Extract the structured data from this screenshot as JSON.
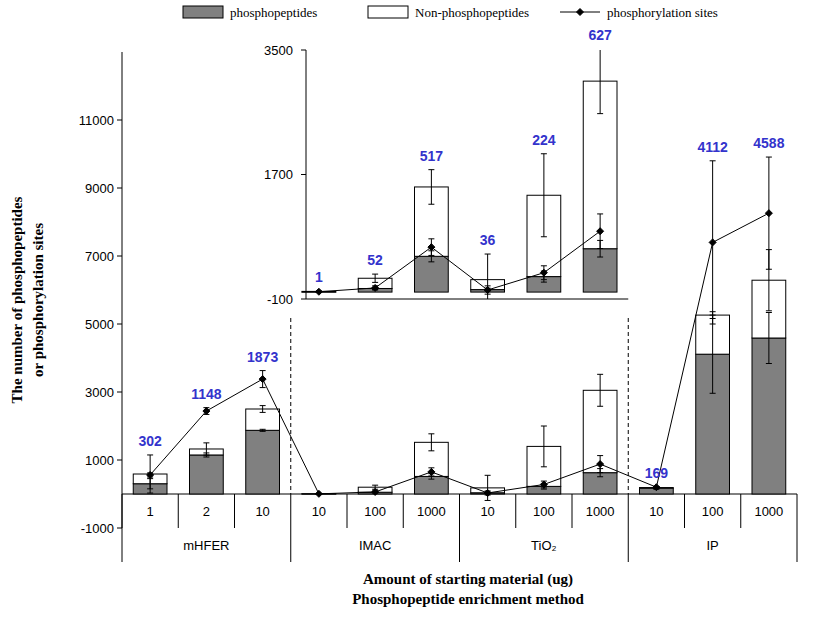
{
  "chart_data": [
    {
      "type": "bar",
      "stacked": true,
      "data_labels": true,
      "legend": "top",
      "y_label": [
        "The number of phosphopeptides",
        "or phosphorylation sites"
      ],
      "x_label": [
        "Amount of starting material (ug)",
        "Phosphopeptide enrichment method"
      ],
      "categories": [
        "1",
        "2",
        "10",
        "10",
        "100",
        "1000",
        "10",
        "100",
        "1000",
        "10",
        "100",
        "1000"
      ],
      "groups": [
        {
          "name": "mHFER",
          "size": 3
        },
        {
          "name": "IMAC",
          "size": 3
        },
        {
          "name": "TiO₂",
          "size": 3
        },
        {
          "name": "IP",
          "size": 3
        }
      ],
      "ylim": [
        -1000,
        13000
      ],
      "yticks": [
        -1000,
        1000,
        3000,
        5000,
        7000,
        9000,
        11000
      ],
      "series": [
        {
          "name": "phosphopeptides",
          "color": "#808080",
          "values": [
            302,
            1148,
            1873,
            1,
            52,
            517,
            36,
            224,
            627,
            169,
            4112,
            4588
          ],
          "errors": [
            150,
            60,
            30,
            1,
            15,
            80,
            20,
            80,
            120,
            30,
            1150,
            750
          ],
          "value_labels": [
            "302",
            "1148",
            "1873",
            null,
            null,
            null,
            null,
            null,
            null,
            "169",
            "4112",
            "4588"
          ]
        },
        {
          "name": "Non-phosphopeptides",
          "color": "#ffffff",
          "values": [
            286,
            176,
            627,
            9,
            148,
            1003,
            144,
            1176,
            2423,
            21,
            1150,
            1700
          ],
          "errors": [
            560,
            180,
            100,
            5,
            60,
            250,
            370,
            600,
            470,
            30,
            100,
            900
          ]
        },
        {
          "name": "phosphorylation sites",
          "type": "line",
          "color": "#000000",
          "marker": "diamond",
          "line_style": "solid",
          "values": [
            560,
            2440,
            3380,
            5,
            60,
            650,
            30,
            280,
            880,
            200,
            7400,
            8260
          ],
          "errors": [
            60,
            100,
            250,
            3,
            30,
            120,
            60,
            100,
            250,
            20,
            2400,
            1650
          ]
        }
      ]
    },
    {
      "type": "bar",
      "stacked": true,
      "data_labels": true,
      "tick_labels": "y",
      "categories": [
        null,
        null,
        null,
        null,
        null,
        null
      ],
      "ylim": [
        -100,
        3500
      ],
      "yticks": [
        -100,
        1700,
        3500
      ],
      "series": [
        {
          "color": "#808080",
          "values": [
            1,
            52,
            517,
            36,
            224,
            627
          ],
          "errors": [
            1,
            15,
            80,
            20,
            80,
            120
          ]
        },
        {
          "color": "#ffffff",
          "values": [
            9,
            148,
            1003,
            144,
            1176,
            2423
          ],
          "errors": [
            5,
            60,
            250,
            370,
            600,
            470
          ]
        },
        {
          "type": "line",
          "color": "#000000",
          "marker": "diamond",
          "line_style": "solid",
          "values": [
            5,
            60,
            650,
            30,
            280,
            880
          ],
          "errors": [
            3,
            30,
            120,
            60,
            100,
            250
          ]
        }
      ]
    }
  ]
}
